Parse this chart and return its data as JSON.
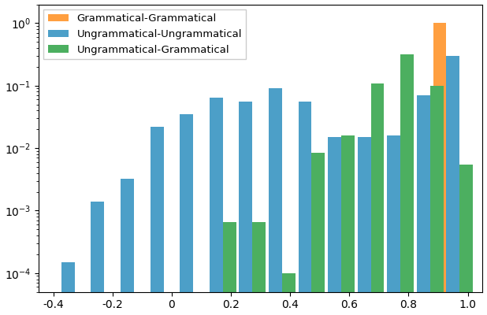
{
  "legend_labels": [
    "Grammatical-Grammatical",
    "Ungrammatical-Ungrammatical",
    "Ungrammatical-Grammatical"
  ],
  "colors": [
    "#ff9f40",
    "#4c9fc8",
    "#4caf60"
  ],
  "xlim": [
    -0.45,
    1.05
  ],
  "ylim": [
    5e-05,
    2.0
  ],
  "bar_width": 0.045,
  "xticks": [
    -0.4,
    -0.2,
    0.0,
    0.2,
    0.4,
    0.6,
    0.8,
    1.0
  ],
  "xtick_labels": [
    "-0.4",
    "-0.2",
    "0",
    "0.2",
    "0.4",
    "0.6",
    "0.8",
    "1.0"
  ],
  "bin_centers": [
    -0.35,
    -0.25,
    -0.15,
    -0.05,
    0.05,
    0.15,
    0.25,
    0.35,
    0.45,
    0.55,
    0.65,
    0.75,
    0.85,
    0.95
  ],
  "gram_gram": [
    0,
    0,
    0,
    0,
    0,
    0,
    0,
    0,
    0,
    0,
    0,
    0,
    0,
    1.0
  ],
  "ungram_ungram": [
    0.00015,
    0.0014,
    0.0032,
    0.022,
    0.035,
    0.065,
    0.055,
    0.09,
    0.055,
    0.015,
    0.015,
    0.016,
    0.07,
    0.3
  ],
  "ungram_gram": [
    0,
    0,
    0,
    0,
    5e-05,
    0.00065,
    0.00065,
    0.0001,
    0.0085,
    0.016,
    0.11,
    0.32,
    0.1,
    0.0055
  ]
}
